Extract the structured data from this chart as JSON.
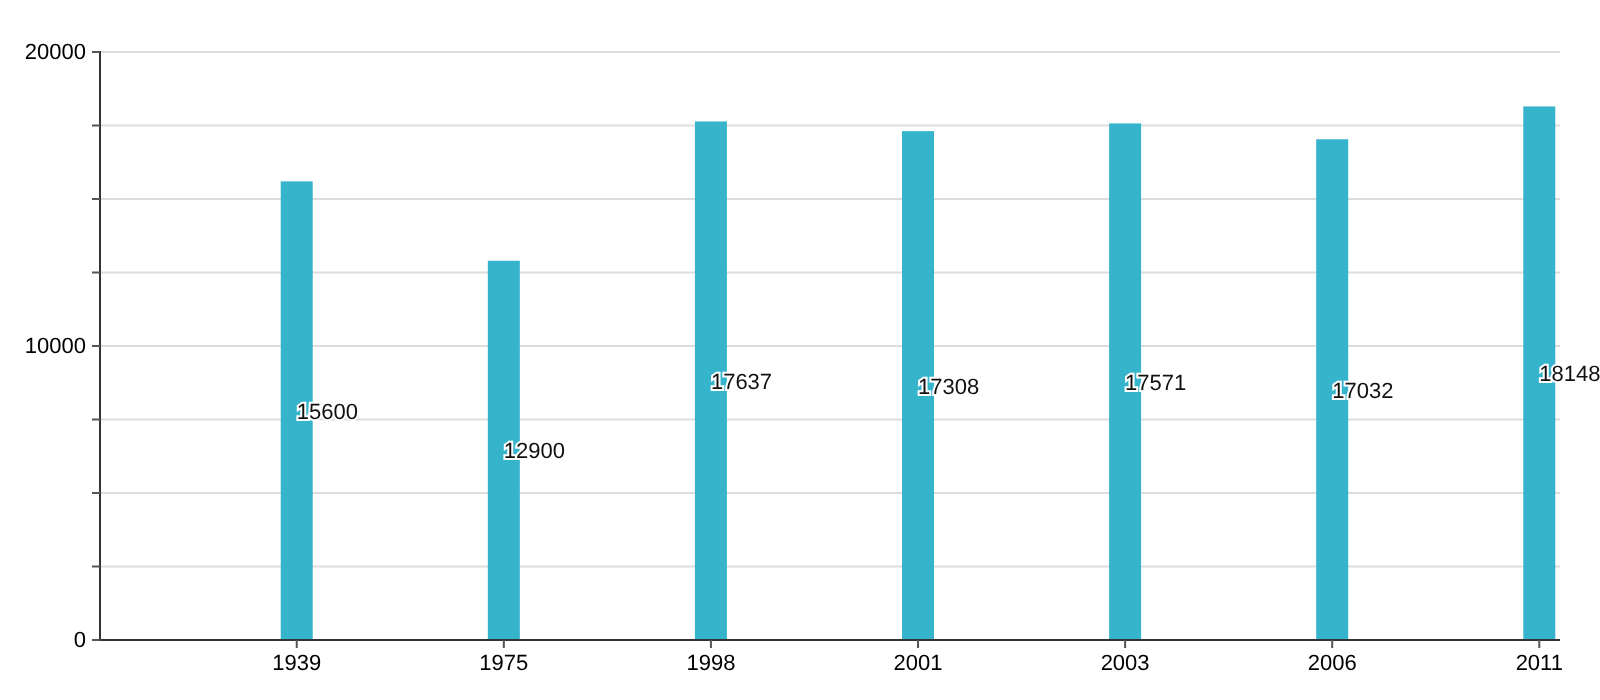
{
  "chart_data": {
    "type": "bar",
    "categories": [
      "1939",
      "1975",
      "1998",
      "2001",
      "2003",
      "2006",
      "2011"
    ],
    "values": [
      15600,
      12900,
      17637,
      17308,
      17571,
      17032,
      18148
    ],
    "color": "#36b4cc",
    "ylim": [
      0,
      20000
    ],
    "yticks": [
      0,
      {
        "value": 2500,
        "label": null
      },
      {
        "value": 5000,
        "label": null
      },
      {
        "value": 7500,
        "label": null
      },
      10000,
      {
        "value": 12500,
        "label": null
      },
      {
        "value": 15000,
        "label": null
      },
      {
        "value": 17500,
        "label": null
      },
      20000
    ],
    "grid": true,
    "data_labels": true
  }
}
